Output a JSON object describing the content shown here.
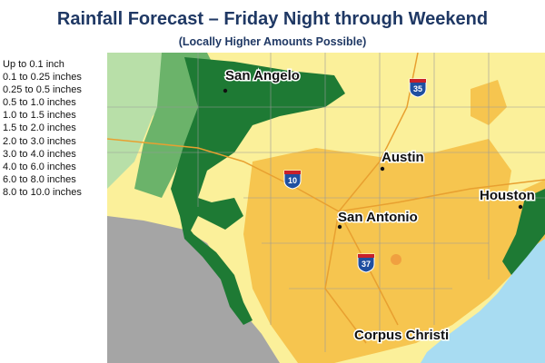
{
  "header": {
    "title": "Rainfall Forecast – Friday Night through Weekend",
    "subtitle": "(Locally Higher Amounts Possible)"
  },
  "legend": {
    "items": [
      "Up to 0.1 inch",
      "0.1 to 0.25 inches",
      "0.25 to 0.5 inches",
      "0.5 to 1.0 inches",
      "1.0 to 1.5 inches",
      "1.5 to 2.0 inches",
      "2.0 to 3.0 inches",
      "3.0 to 4.0 inches",
      "4.0 to 6.0 inches",
      "6.0 to 8.0 inches",
      "8.0 to 10.0 inches"
    ]
  },
  "map": {
    "cities": [
      "San Angelo",
      "Austin",
      "Houston",
      "San Antonio",
      "Corpus Christi"
    ],
    "highways": [
      "35",
      "10",
      "37"
    ]
  }
}
